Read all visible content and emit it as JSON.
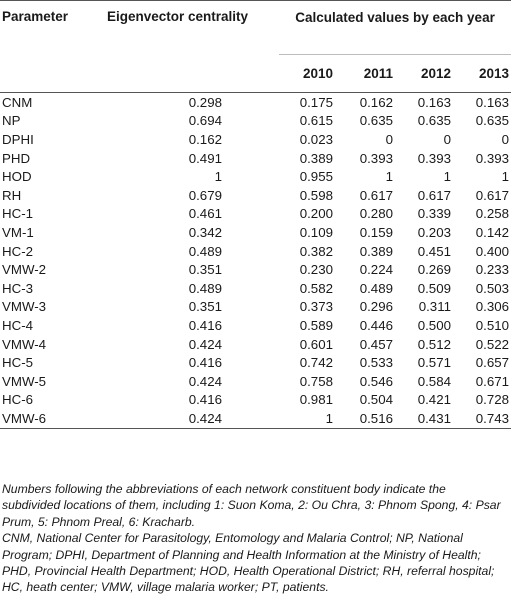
{
  "table": {
    "headers": {
      "parameter": "Parameter",
      "eigenvector": "Eigenvector centrality",
      "calculated": "Calculated values by each year",
      "years": [
        "2010",
        "2011",
        "2012",
        "2013"
      ]
    },
    "rows": [
      {
        "param": "CNM",
        "eig": "0.298",
        "y2010": "0.175",
        "y2011": "0.162",
        "y2012": "0.163",
        "y2013": "0.163"
      },
      {
        "param": "NP",
        "eig": "0.694",
        "y2010": "0.615",
        "y2011": "0.635",
        "y2012": "0.635",
        "y2013": "0.635"
      },
      {
        "param": "DPHI",
        "eig": "0.162",
        "y2010": "0.023",
        "y2011": "0",
        "y2012": "0",
        "y2013": "0"
      },
      {
        "param": "PHD",
        "eig": "0.491",
        "y2010": "0.389",
        "y2011": "0.393",
        "y2012": "0.393",
        "y2013": "0.393"
      },
      {
        "param": "HOD",
        "eig": "1",
        "y2010": "0.955",
        "y2011": "1",
        "y2012": "1",
        "y2013": "1"
      },
      {
        "param": "RH",
        "eig": "0.679",
        "y2010": "0.598",
        "y2011": "0.617",
        "y2012": "0.617",
        "y2013": "0.617"
      },
      {
        "param": "HC-1",
        "eig": "0.461",
        "y2010": "0.200",
        "y2011": "0.280",
        "y2012": "0.339",
        "y2013": "0.258"
      },
      {
        "param": "VM-1",
        "eig": "0.342",
        "y2010": "0.109",
        "y2011": "0.159",
        "y2012": "0.203",
        "y2013": "0.142"
      },
      {
        "param": "HC-2",
        "eig": "0.489",
        "y2010": "0.382",
        "y2011": "0.389",
        "y2012": "0.451",
        "y2013": "0.400"
      },
      {
        "param": "VMW-2",
        "eig": "0.351",
        "y2010": "0.230",
        "y2011": "0.224",
        "y2012": "0.269",
        "y2013": "0.233"
      },
      {
        "param": "HC-3",
        "eig": "0.489",
        "y2010": "0.582",
        "y2011": "0.489",
        "y2012": "0.509",
        "y2013": "0.503"
      },
      {
        "param": "VMW-3",
        "eig": "0.351",
        "y2010": "0.373",
        "y2011": "0.296",
        "y2012": "0.311",
        "y2013": "0.306"
      },
      {
        "param": "HC-4",
        "eig": "0.416",
        "y2010": "0.589",
        "y2011": "0.446",
        "y2012": "0.500",
        "y2013": "0.510"
      },
      {
        "param": "VMW-4",
        "eig": "0.424",
        "y2010": "0.601",
        "y2011": "0.457",
        "y2012": "0.512",
        "y2013": "0.522"
      },
      {
        "param": "HC-5",
        "eig": "0.416",
        "y2010": "0.742",
        "y2011": "0.533",
        "y2012": "0.571",
        "y2013": "0.657"
      },
      {
        "param": "VMW-5",
        "eig": "0.424",
        "y2010": "0.758",
        "y2011": "0.546",
        "y2012": "0.584",
        "y2013": "0.671"
      },
      {
        "param": "HC-6",
        "eig": "0.416",
        "y2010": "0.981",
        "y2011": "0.504",
        "y2012": "0.421",
        "y2013": "0.728"
      },
      {
        "param": "VMW-6",
        "eig": "0.424",
        "y2010": "1",
        "y2011": "0.516",
        "y2012": "0.431",
        "y2013": "0.743"
      }
    ]
  },
  "notes": {
    "note1": "Numbers following the abbreviations of each network constituent body indicate the subdivided locations of them, including 1: Suon Koma, 2: Ou Chra, 3: Phnom Spong, 4: Psar Prum, 5: Phnom Preal, 6: Kracharb.",
    "note2": "CNM, National Center for Parasitology, Entomology and Malaria Control; NP, National Program; DPHI, Department of Planning and Health Information at the Ministry of Health; PHD, Provincial Health Department; HOD, Health Operational District; RH, referral hospital; HC, heath center; VMW, village malaria worker; PT, patients."
  }
}
